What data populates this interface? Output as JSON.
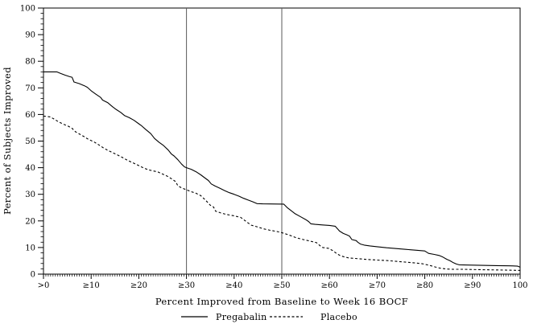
{
  "chart_data": {
    "type": "line",
    "title": "",
    "xlabel": "Percent Improved from Baseline to Week 16 BOCF",
    "ylabel": "Percent of Subjects Improved",
    "xlim": [
      0,
      100
    ],
    "ylim": [
      0,
      100
    ],
    "grid": false,
    "legend_position": "bottom-center",
    "frame": "box",
    "line_color": "#000000",
    "reference_line_color": "#595959",
    "reference_lines_x": [
      30,
      50
    ],
    "x_ticks": [
      {
        "value": 0,
        "label": ">0"
      },
      {
        "value": 10,
        "label": "≥10"
      },
      {
        "value": 20,
        "label": "≥20"
      },
      {
        "value": 30,
        "label": "≥30"
      },
      {
        "value": 40,
        "label": "≥40"
      },
      {
        "value": 50,
        "label": "≥50"
      },
      {
        "value": 60,
        "label": "≥60"
      },
      {
        "value": 70,
        "label": "≥70"
      },
      {
        "value": 80,
        "label": "≥80"
      },
      {
        "value": 90,
        "label": "≥90"
      },
      {
        "value": 100,
        "label": "100"
      }
    ],
    "y_tick_values": [
      0,
      10,
      20,
      30,
      40,
      50,
      60,
      70,
      80,
      90,
      100
    ],
    "minor_tick_step_x": 0.5,
    "minor_tick_step_y": 2,
    "series": [
      {
        "name": "Pregabalin",
        "style": "solid",
        "color": "#000000",
        "points": [
          [
            0,
            76
          ],
          [
            2.8,
            76
          ],
          [
            3.5,
            75.5
          ],
          [
            4.5,
            74.8
          ],
          [
            5.5,
            74.2
          ],
          [
            6,
            74
          ],
          [
            6.4,
            72.2
          ],
          [
            7.5,
            71.6
          ],
          [
            8.6,
            70.8
          ],
          [
            9.2,
            70.2
          ],
          [
            10,
            68.9
          ],
          [
            11,
            67.6
          ],
          [
            12,
            66.4
          ],
          [
            12.4,
            65.4
          ],
          [
            13.5,
            64.4
          ],
          [
            14.5,
            62.9
          ],
          [
            15.3,
            61.8
          ],
          [
            16.2,
            60.8
          ],
          [
            17,
            59.6
          ],
          [
            18,
            58.8
          ],
          [
            19,
            57.8
          ],
          [
            20,
            56.5
          ],
          [
            20.6,
            55.7
          ],
          [
            21.5,
            54.3
          ],
          [
            22.5,
            52.8
          ],
          [
            23.3,
            51
          ],
          [
            24.2,
            49.6
          ],
          [
            25.2,
            48.3
          ],
          [
            26.2,
            46.6
          ],
          [
            26.8,
            45.2
          ],
          [
            27.4,
            44.4
          ],
          [
            28.2,
            43
          ],
          [
            29,
            41.3
          ],
          [
            29.6,
            40.3
          ],
          [
            30,
            40
          ],
          [
            31,
            39.4
          ],
          [
            32,
            38.5
          ],
          [
            33,
            37.3
          ],
          [
            33.9,
            36.1
          ],
          [
            34.6,
            35.2
          ],
          [
            35.2,
            33.9
          ],
          [
            36,
            33.1
          ],
          [
            37,
            32.3
          ],
          [
            38,
            31.4
          ],
          [
            39,
            30.6
          ],
          [
            40,
            30
          ],
          [
            41,
            29.3
          ],
          [
            42,
            28.5
          ],
          [
            43,
            27.8
          ],
          [
            43.9,
            27.2
          ],
          [
            44.8,
            26.5
          ],
          [
            46,
            26.4
          ],
          [
            50.4,
            26.3
          ],
          [
            51.2,
            24.9
          ],
          [
            52,
            23.8
          ],
          [
            52.8,
            22.7
          ],
          [
            54,
            21.5
          ],
          [
            55,
            20.5
          ],
          [
            55.6,
            19.8
          ],
          [
            56.1,
            18.9
          ],
          [
            57,
            18.7
          ],
          [
            58.5,
            18.5
          ],
          [
            60,
            18.3
          ],
          [
            61.2,
            18
          ],
          [
            61.7,
            17
          ],
          [
            62.1,
            16.2
          ],
          [
            62.9,
            15.3
          ],
          [
            63.6,
            14.8
          ],
          [
            64.2,
            14.3
          ],
          [
            64.7,
            13
          ],
          [
            65.6,
            12.6
          ],
          [
            66,
            11.9
          ],
          [
            66.5,
            11.3
          ],
          [
            67.3,
            10.9
          ],
          [
            68.5,
            10.6
          ],
          [
            70,
            10.3
          ],
          [
            72,
            9.9
          ],
          [
            74,
            9.6
          ],
          [
            76,
            9.3
          ],
          [
            78,
            9
          ],
          [
            80,
            8.7
          ],
          [
            80.8,
            7.8
          ],
          [
            82,
            7.4
          ],
          [
            83,
            7
          ],
          [
            83.8,
            6.4
          ],
          [
            84.6,
            5.6
          ],
          [
            85.3,
            5
          ],
          [
            86,
            4.3
          ],
          [
            86.6,
            3.8
          ],
          [
            87.2,
            3.5
          ],
          [
            89,
            3.4
          ],
          [
            92,
            3.3
          ],
          [
            95,
            3.2
          ],
          [
            98,
            3.1
          ],
          [
            99.5,
            3
          ],
          [
            100,
            2.6
          ]
        ]
      },
      {
        "name": "Placebo",
        "style": "dashed",
        "color": "#000000",
        "points": [
          [
            0,
            59.4
          ],
          [
            1.4,
            59.1
          ],
          [
            2.2,
            58.3
          ],
          [
            3.2,
            57.2
          ],
          [
            4.4,
            56.2
          ],
          [
            5.2,
            55.6
          ],
          [
            6,
            54.8
          ],
          [
            6.7,
            53.5
          ],
          [
            7.6,
            52.6
          ],
          [
            8.5,
            51.7
          ],
          [
            9.4,
            50.7
          ],
          [
            10.5,
            49.8
          ],
          [
            11.5,
            48.7
          ],
          [
            12.6,
            47.4
          ],
          [
            13.6,
            46.4
          ],
          [
            14.6,
            45.6
          ],
          [
            15.6,
            44.7
          ],
          [
            16.6,
            43.8
          ],
          [
            17.7,
            42.7
          ],
          [
            18.8,
            41.8
          ],
          [
            20,
            40.8
          ],
          [
            21,
            39.9
          ],
          [
            22,
            39.2
          ],
          [
            23,
            38.8
          ],
          [
            24,
            38.4
          ],
          [
            25,
            37.6
          ],
          [
            26,
            36.8
          ],
          [
            26.9,
            35.8
          ],
          [
            27.7,
            34.8
          ],
          [
            28.2,
            33.2
          ],
          [
            29,
            32.4
          ],
          [
            30,
            31.7
          ],
          [
            31,
            31
          ],
          [
            32,
            30.4
          ],
          [
            33,
            29.5
          ],
          [
            34,
            27.8
          ],
          [
            35,
            25.9
          ],
          [
            35.7,
            25.2
          ],
          [
            36.1,
            23.7
          ],
          [
            37.2,
            23
          ],
          [
            38.5,
            22.4
          ],
          [
            40,
            21.9
          ],
          [
            41.4,
            21.3
          ],
          [
            42.2,
            20.2
          ],
          [
            42.8,
            19.4
          ],
          [
            43.6,
            18.4
          ],
          [
            44.8,
            17.8
          ],
          [
            46.2,
            17
          ],
          [
            47.5,
            16.5
          ],
          [
            49,
            16
          ],
          [
            50,
            15.6
          ],
          [
            51.5,
            14.7
          ],
          [
            53,
            13.7
          ],
          [
            54.5,
            13
          ],
          [
            56,
            12.4
          ],
          [
            57.3,
            11.8
          ],
          [
            58,
            10.7
          ],
          [
            58.6,
            10
          ],
          [
            59.8,
            9.7
          ],
          [
            60.6,
            8.9
          ],
          [
            61.4,
            7.9
          ],
          [
            62.2,
            7
          ],
          [
            62.9,
            6.6
          ],
          [
            64,
            6.1
          ],
          [
            66,
            5.8
          ],
          [
            68,
            5.5
          ],
          [
            70,
            5.3
          ],
          [
            72,
            5.1
          ],
          [
            74,
            4.8
          ],
          [
            76,
            4.5
          ],
          [
            78,
            4.2
          ],
          [
            79.5,
            3.9
          ],
          [
            81,
            3.3
          ],
          [
            82.2,
            2.7
          ],
          [
            83.3,
            2.2
          ],
          [
            84.6,
            1.9
          ],
          [
            86,
            1.8
          ],
          [
            88,
            1.8
          ],
          [
            91,
            1.7
          ],
          [
            94,
            1.6
          ],
          [
            97,
            1.5
          ],
          [
            100,
            1.4
          ]
        ]
      }
    ]
  }
}
